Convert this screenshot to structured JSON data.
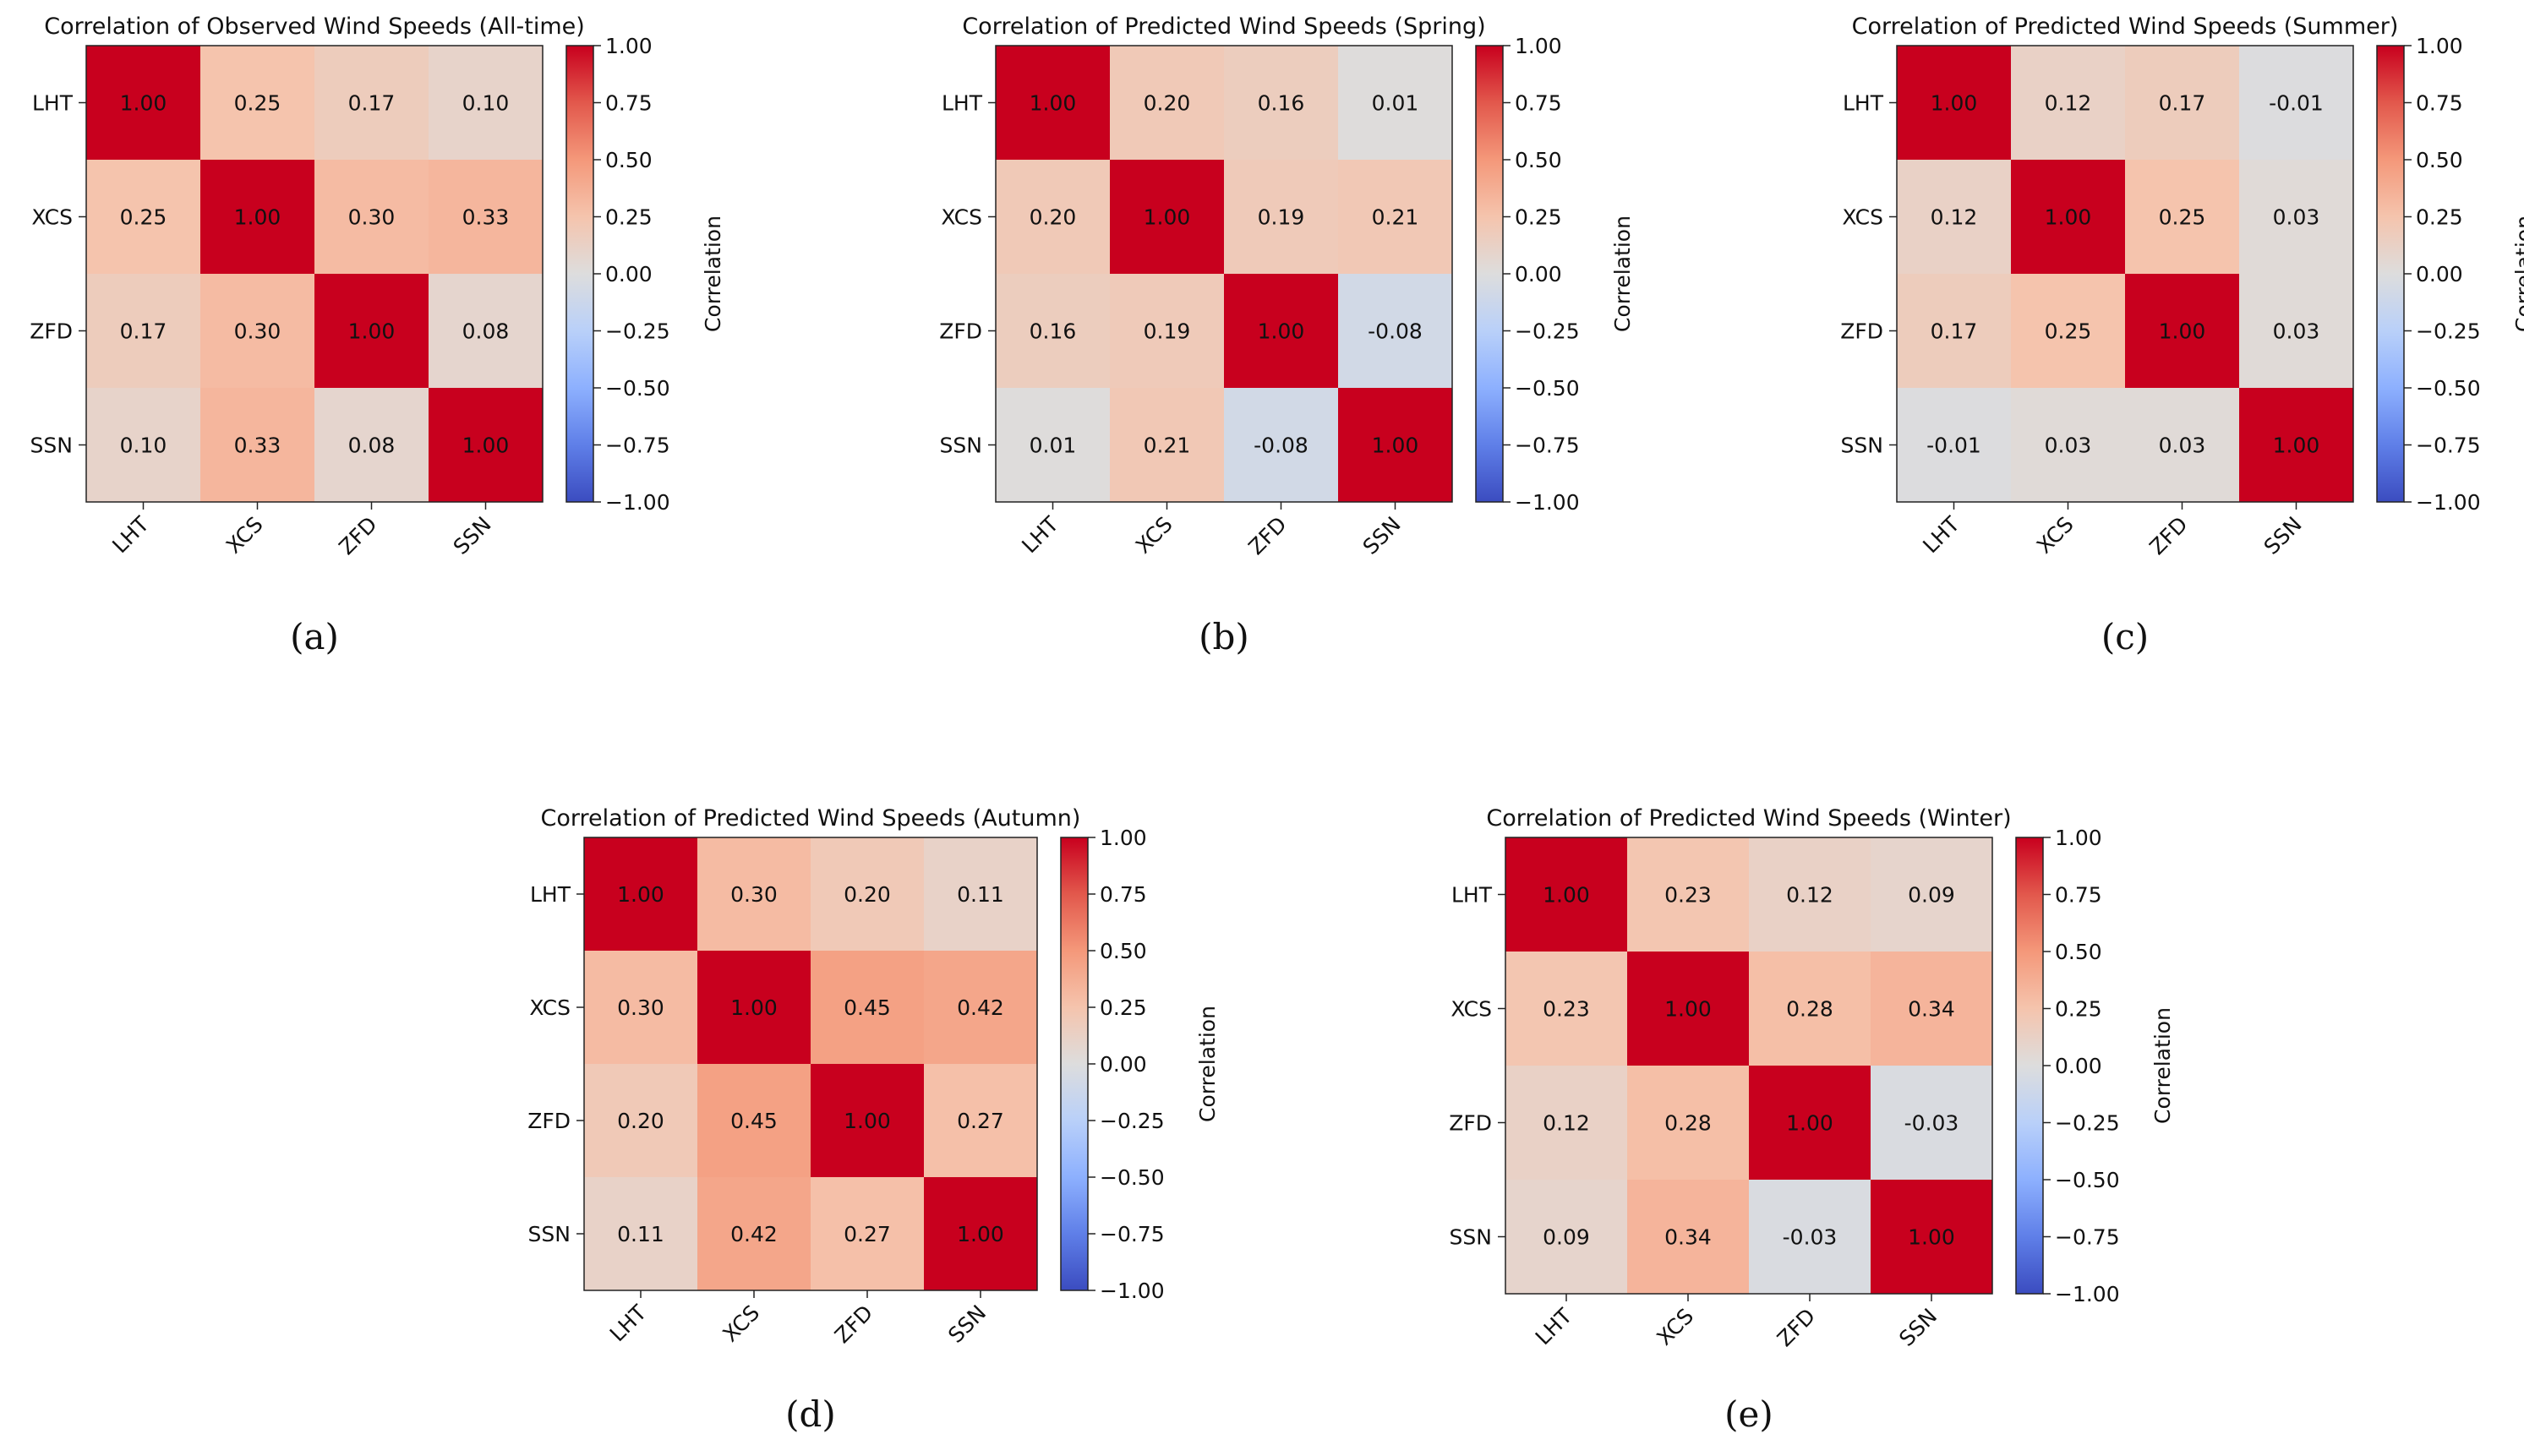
{
  "colors": {
    "low": "#3b4cc0",
    "mid": "#dddddd",
    "high": "#c8001e",
    "axis": "#222222",
    "text": "#111111"
  },
  "chart_data": [
    {
      "type": "heatmap",
      "panel": "(a)",
      "title": "Correlation of Observed Wind Speeds (All-time)",
      "x_labels": [
        "LHT",
        "XCS",
        "ZFD",
        "SSN"
      ],
      "y_labels": [
        "LHT",
        "XCS",
        "ZFD",
        "SSN"
      ],
      "matrix": [
        [
          1.0,
          0.25,
          0.17,
          0.1
        ],
        [
          0.25,
          1.0,
          0.3,
          0.33
        ],
        [
          0.17,
          0.3,
          1.0,
          0.08
        ],
        [
          0.1,
          0.33,
          0.08,
          1.0
        ]
      ],
      "value_labels": [
        [
          "1.00",
          "0.25",
          "0.17",
          "0.10"
        ],
        [
          "0.25",
          "1.00",
          "0.30",
          "0.33"
        ],
        [
          "0.17",
          "0.30",
          "1.00",
          "0.08"
        ],
        [
          "0.10",
          "0.33",
          "0.08",
          "1.00"
        ]
      ],
      "colorbar_label": "Correlation",
      "colorbar_ticks": [
        "1.00",
        "0.75",
        "0.50",
        "0.25",
        "0.00",
        "−0.25",
        "−0.50",
        "−0.75",
        "−1.00"
      ],
      "vlim": [
        -1,
        1
      ]
    },
    {
      "type": "heatmap",
      "panel": "(b)",
      "title": "Correlation of Predicted Wind Speeds (Spring)",
      "x_labels": [
        "LHT",
        "XCS",
        "ZFD",
        "SSN"
      ],
      "y_labels": [
        "LHT",
        "XCS",
        "ZFD",
        "SSN"
      ],
      "matrix": [
        [
          1.0,
          0.2,
          0.16,
          0.01
        ],
        [
          0.2,
          1.0,
          0.19,
          0.21
        ],
        [
          0.16,
          0.19,
          1.0,
          -0.08
        ],
        [
          0.01,
          0.21,
          -0.08,
          1.0
        ]
      ],
      "value_labels": [
        [
          "1.00",
          "0.20",
          "0.16",
          "0.01"
        ],
        [
          "0.20",
          "1.00",
          "0.19",
          "0.21"
        ],
        [
          "0.16",
          "0.19",
          "1.00",
          "-0.08"
        ],
        [
          "0.01",
          "0.21",
          "-0.08",
          "1.00"
        ]
      ],
      "colorbar_label": "Correlation",
      "colorbar_ticks": [
        "1.00",
        "0.75",
        "0.50",
        "0.25",
        "0.00",
        "−0.25",
        "−0.50",
        "−0.75",
        "−1.00"
      ],
      "vlim": [
        -1,
        1
      ]
    },
    {
      "type": "heatmap",
      "panel": "(c)",
      "title": "Correlation of Predicted Wind Speeds (Summer)",
      "x_labels": [
        "LHT",
        "XCS",
        "ZFD",
        "SSN"
      ],
      "y_labels": [
        "LHT",
        "XCS",
        "ZFD",
        "SSN"
      ],
      "matrix": [
        [
          1.0,
          0.12,
          0.17,
          -0.01
        ],
        [
          0.12,
          1.0,
          0.25,
          0.03
        ],
        [
          0.17,
          0.25,
          1.0,
          0.03
        ],
        [
          -0.01,
          0.03,
          0.03,
          1.0
        ]
      ],
      "value_labels": [
        [
          "1.00",
          "0.12",
          "0.17",
          "-0.01"
        ],
        [
          "0.12",
          "1.00",
          "0.25",
          "0.03"
        ],
        [
          "0.17",
          "0.25",
          "1.00",
          "0.03"
        ],
        [
          "-0.01",
          "0.03",
          "0.03",
          "1.00"
        ]
      ],
      "colorbar_label": "Correlation",
      "colorbar_ticks": [
        "1.00",
        "0.75",
        "0.50",
        "0.25",
        "0.00",
        "−0.25",
        "−0.50",
        "−0.75",
        "−1.00"
      ],
      "vlim": [
        -1,
        1
      ]
    },
    {
      "type": "heatmap",
      "panel": "(d)",
      "title": "Correlation of Predicted Wind Speeds (Autumn)",
      "x_labels": [
        "LHT",
        "XCS",
        "ZFD",
        "SSN"
      ],
      "y_labels": [
        "LHT",
        "XCS",
        "ZFD",
        "SSN"
      ],
      "matrix": [
        [
          1.0,
          0.3,
          0.2,
          0.11
        ],
        [
          0.3,
          1.0,
          0.45,
          0.42
        ],
        [
          0.2,
          0.45,
          1.0,
          0.27
        ],
        [
          0.11,
          0.42,
          0.27,
          1.0
        ]
      ],
      "value_labels": [
        [
          "1.00",
          "0.30",
          "0.20",
          "0.11"
        ],
        [
          "0.30",
          "1.00",
          "0.45",
          "0.42"
        ],
        [
          "0.20",
          "0.45",
          "1.00",
          "0.27"
        ],
        [
          "0.11",
          "0.42",
          "0.27",
          "1.00"
        ]
      ],
      "colorbar_label": "Correlation",
      "colorbar_ticks": [
        "1.00",
        "0.75",
        "0.50",
        "0.25",
        "0.00",
        "−0.25",
        "−0.50",
        "−0.75",
        "−1.00"
      ],
      "vlim": [
        -1,
        1
      ]
    },
    {
      "type": "heatmap",
      "panel": "(e)",
      "title": "Correlation of Predicted Wind Speeds (Winter)",
      "x_labels": [
        "LHT",
        "XCS",
        "ZFD",
        "SSN"
      ],
      "y_labels": [
        "LHT",
        "XCS",
        "ZFD",
        "SSN"
      ],
      "matrix": [
        [
          1.0,
          0.23,
          0.12,
          0.09
        ],
        [
          0.23,
          1.0,
          0.28,
          0.34
        ],
        [
          0.12,
          0.28,
          1.0,
          -0.03
        ],
        [
          0.09,
          0.34,
          -0.03,
          1.0
        ]
      ],
      "value_labels": [
        [
          "1.00",
          "0.23",
          "0.12",
          "0.09"
        ],
        [
          "0.23",
          "1.00",
          "0.28",
          "0.34"
        ],
        [
          "0.12",
          "0.28",
          "1.00",
          "-0.03"
        ],
        [
          "0.09",
          "0.34",
          "-0.03",
          "1.00"
        ]
      ],
      "colorbar_label": "Correlation",
      "colorbar_ticks": [
        "1.00",
        "0.75",
        "0.50",
        "0.25",
        "0.00",
        "−0.25",
        "−0.50",
        "−0.75",
        "−1.00"
      ],
      "vlim": [
        -1,
        1
      ]
    }
  ]
}
